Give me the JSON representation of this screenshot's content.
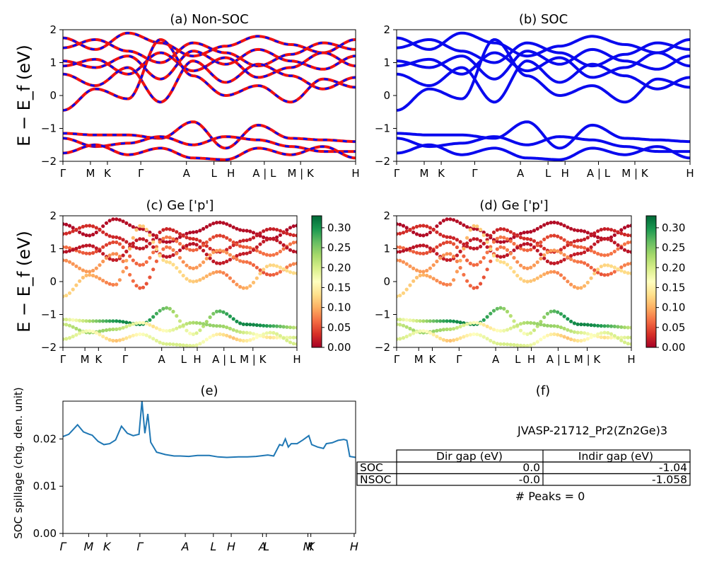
{
  "figure_title": "",
  "ylabel_bands": "E − E_f (eV)",
  "colorbar_ticks": [
    "0.00",
    "0.05",
    "0.10",
    "0.15",
    "0.20",
    "0.25",
    "0.30"
  ],
  "colors": {
    "nonsoc": "#ee1111",
    "soc": "#0a0aee",
    "spillage": "#1f77b4",
    "cmap": [
      "#a50026",
      "#d73027",
      "#f46d43",
      "#fdae61",
      "#fee08b",
      "#ffffbf",
      "#d9ef8b",
      "#a6d96a",
      "#66bd63",
      "#1a9850",
      "#006837"
    ]
  },
  "chart_data": [
    {
      "id": "a",
      "type": "line",
      "title": "(a) Non-SOC",
      "ylim": [
        -2,
        2
      ],
      "yticks": [
        "2",
        "1",
        "0",
        "−1",
        "−2"
      ],
      "kpoints": [
        "Γ",
        "M",
        "K",
        "Γ",
        "A",
        "L",
        "H",
        "A | L",
        "M | K",
        "H"
      ],
      "kpoint_positions": [
        0,
        0.094,
        0.152,
        0.266,
        0.422,
        0.516,
        0.574,
        0.688,
        0.812,
        1.0
      ],
      "series": [
        {
          "values": [
            1.75,
            1.4,
            1.9,
            1.6,
            1.2,
            1.5,
            1.8,
            1.55,
            1.3,
            1.7
          ]
        },
        {
          "values": [
            1.45,
            1.7,
            1.35,
            1.0,
            1.6,
            1.3,
            0.9,
            1.25,
            1.6,
            1.4
          ]
        },
        {
          "values": [
            1.05,
            0.85,
            1.2,
            0.5,
            1.35,
            0.95,
            1.4,
            1.05,
            0.8,
            1.2
          ]
        },
        {
          "values": [
            0.9,
            1.1,
            0.65,
            1.3,
            0.75,
            1.15,
            0.55,
            0.85,
            1.3,
            0.9
          ]
        },
        {
          "values": [
            0.65,
            0.3,
            0.85,
            -0.2,
            1.05,
            0.4,
            0.95,
            0.6,
            0.2,
            0.55
          ]
        },
        {
          "values": [
            -0.45,
            0.2,
            -0.1,
            1.7,
            0.6,
            0.0,
            0.3,
            -0.2,
            0.5,
            0.25
          ]
        },
        {
          "values": [
            -1.15,
            -1.2,
            -1.2,
            -1.3,
            -0.8,
            -1.6,
            -0.9,
            -1.3,
            -1.35,
            -1.4
          ]
        },
        {
          "values": [
            -1.3,
            -1.55,
            -1.45,
            -1.25,
            -1.5,
            -1.25,
            -1.35,
            -1.55,
            -1.7,
            -1.7
          ]
        },
        {
          "values": [
            -1.75,
            -1.5,
            -1.8,
            -1.6,
            -1.9,
            -1.95,
            -1.6,
            -1.8,
            -1.55,
            -1.9
          ]
        }
      ]
    },
    {
      "id": "b",
      "type": "line",
      "title": "(b) SOC",
      "ylim": [
        -2,
        2
      ],
      "yticks": [
        "2",
        "1",
        "0",
        "−1",
        "−2"
      ],
      "kpoints": [
        "Γ",
        "M",
        "K",
        "Γ",
        "A",
        "L",
        "H",
        "A | L",
        "M | K",
        "H"
      ],
      "kpoint_positions": [
        0,
        0.094,
        0.152,
        0.266,
        0.422,
        0.516,
        0.574,
        0.688,
        0.812,
        1.0
      ],
      "series": [
        {
          "values": [
            1.75,
            1.4,
            1.9,
            1.6,
            1.2,
            1.5,
            1.8,
            1.55,
            1.3,
            1.7
          ]
        },
        {
          "values": [
            1.45,
            1.7,
            1.35,
            1.0,
            1.6,
            1.3,
            0.9,
            1.25,
            1.6,
            1.4
          ]
        },
        {
          "values": [
            1.05,
            0.85,
            1.2,
            0.5,
            1.35,
            0.95,
            1.4,
            1.05,
            0.8,
            1.2
          ]
        },
        {
          "values": [
            0.9,
            1.1,
            0.65,
            1.3,
            0.75,
            1.15,
            0.55,
            0.85,
            1.3,
            0.9
          ]
        },
        {
          "values": [
            0.65,
            0.3,
            0.85,
            -0.2,
            1.05,
            0.4,
            0.95,
            0.6,
            0.2,
            0.55
          ]
        },
        {
          "values": [
            -0.45,
            0.2,
            -0.1,
            1.7,
            0.6,
            0.0,
            0.3,
            -0.2,
            0.5,
            0.25
          ]
        },
        {
          "values": [
            -1.15,
            -1.2,
            -1.2,
            -1.3,
            -0.8,
            -1.6,
            -0.9,
            -1.3,
            -1.35,
            -1.4
          ]
        },
        {
          "values": [
            -1.3,
            -1.55,
            -1.45,
            -1.25,
            -1.5,
            -1.25,
            -1.35,
            -1.55,
            -1.7,
            -1.7
          ]
        },
        {
          "values": [
            -1.75,
            -1.5,
            -1.8,
            -1.6,
            -1.9,
            -1.95,
            -1.6,
            -1.8,
            -1.55,
            -1.9
          ]
        }
      ]
    },
    {
      "id": "c",
      "type": "scatter",
      "title": "(c)  Ge ['p']",
      "ylim": [
        -2,
        2
      ],
      "yticks": [
        "2",
        "1",
        "0",
        "−1",
        "−2"
      ],
      "colorbar_range": [
        0.0,
        0.33
      ],
      "kpoints": [
        "Γ",
        "M",
        "K",
        "Γ",
        "A",
        "L",
        "H",
        "A | L",
        "M | K",
        "H"
      ],
      "kpoint_positions": [
        0,
        0.094,
        0.152,
        0.266,
        0.422,
        0.516,
        0.574,
        0.688,
        0.812,
        1.0
      ],
      "bands": [
        {
          "values": [
            1.75,
            1.4,
            1.9,
            1.6,
            1.2,
            1.5,
            1.8,
            1.55,
            1.3,
            1.7
          ],
          "weight": 0.01
        },
        {
          "values": [
            1.45,
            1.7,
            1.35,
            1.0,
            1.6,
            1.3,
            0.9,
            1.25,
            1.6,
            1.4
          ],
          "weight": 0.03
        },
        {
          "values": [
            1.05,
            0.85,
            1.2,
            0.5,
            1.35,
            0.95,
            1.4,
            1.05,
            0.8,
            1.2
          ],
          "weight": 0.07
        },
        {
          "values": [
            0.9,
            1.1,
            0.65,
            1.3,
            0.75,
            1.15,
            0.55,
            0.85,
            1.3,
            0.9
          ],
          "weight": 0.02
        },
        {
          "values": [
            0.65,
            0.3,
            0.85,
            -0.2,
            1.05,
            0.4,
            0.95,
            0.6,
            0.2,
            0.55
          ],
          "weight": 0.09
        },
        {
          "values": [
            -0.45,
            0.2,
            -0.1,
            1.7,
            0.6,
            0.0,
            0.3,
            -0.2,
            0.5,
            0.25
          ],
          "weight": 0.13
        },
        {
          "values": [
            -1.15,
            -1.2,
            -1.2,
            -1.3,
            -0.8,
            -1.6,
            -0.9,
            -1.3,
            -1.35,
            -1.4
          ],
          "weight": 0.31
        },
        {
          "values": [
            -1.3,
            -1.55,
            -1.45,
            -1.25,
            -1.5,
            -1.25,
            -1.35,
            -1.55,
            -1.7,
            -1.7
          ],
          "weight": 0.24
        },
        {
          "values": [
            -1.75,
            -1.5,
            -1.8,
            -1.6,
            -1.9,
            -1.95,
            -1.6,
            -1.8,
            -1.55,
            -1.9
          ],
          "weight": 0.2
        }
      ]
    },
    {
      "id": "d",
      "type": "scatter",
      "title": "(d) Ge ['p']",
      "ylim": [
        -2,
        2
      ],
      "yticks": [
        "2",
        "1",
        "0",
        "−1",
        "−2"
      ],
      "colorbar_range": [
        0.0,
        0.33
      ],
      "kpoints": [
        "Γ",
        "M",
        "K",
        "Γ",
        "A",
        "L",
        "H",
        "A | L",
        "M | K",
        "H"
      ],
      "kpoint_positions": [
        0,
        0.094,
        0.152,
        0.266,
        0.422,
        0.516,
        0.574,
        0.688,
        0.812,
        1.0
      ],
      "bands": [
        {
          "values": [
            1.75,
            1.4,
            1.9,
            1.6,
            1.2,
            1.5,
            1.8,
            1.55,
            1.3,
            1.7
          ],
          "weight": 0.01
        },
        {
          "values": [
            1.45,
            1.7,
            1.35,
            1.0,
            1.6,
            1.3,
            0.9,
            1.25,
            1.6,
            1.4
          ],
          "weight": 0.03
        },
        {
          "values": [
            1.05,
            0.85,
            1.2,
            0.5,
            1.35,
            0.95,
            1.4,
            1.05,
            0.8,
            1.2
          ],
          "weight": 0.07
        },
        {
          "values": [
            0.9,
            1.1,
            0.65,
            1.3,
            0.75,
            1.15,
            0.55,
            0.85,
            1.3,
            0.9
          ],
          "weight": 0.02
        },
        {
          "values": [
            0.65,
            0.3,
            0.85,
            -0.2,
            1.05,
            0.4,
            0.95,
            0.6,
            0.2,
            0.55
          ],
          "weight": 0.09
        },
        {
          "values": [
            -0.45,
            0.2,
            -0.1,
            1.7,
            0.6,
            0.0,
            0.3,
            -0.2,
            0.5,
            0.25
          ],
          "weight": 0.13
        },
        {
          "values": [
            -1.15,
            -1.2,
            -1.2,
            -1.3,
            -0.8,
            -1.6,
            -0.9,
            -1.3,
            -1.35,
            -1.4
          ],
          "weight": 0.31
        },
        {
          "values": [
            -1.3,
            -1.55,
            -1.45,
            -1.25,
            -1.5,
            -1.25,
            -1.35,
            -1.55,
            -1.7,
            -1.7
          ],
          "weight": 0.24
        },
        {
          "values": [
            -1.75,
            -1.5,
            -1.8,
            -1.6,
            -1.9,
            -1.95,
            -1.6,
            -1.8,
            -1.55,
            -1.9
          ],
          "weight": 0.2
        }
      ]
    },
    {
      "id": "e",
      "type": "line",
      "title": "(e)",
      "ylabel": "SOC spillage (chg. den. unit)",
      "ylim": [
        0.0,
        0.028
      ],
      "yticks": [
        "0.00",
        "0.01",
        "0.02"
      ],
      "ytick_values": [
        0.0,
        0.01,
        0.02
      ],
      "kpoints": [
        "Γ",
        "M",
        "K",
        "Γ",
        "A",
        "L",
        "H",
        "A",
        "L",
        "M",
        "K",
        "H"
      ],
      "kpoint_positions": [
        0,
        0.088,
        0.15,
        0.263,
        0.418,
        0.514,
        0.575,
        0.682,
        0.695,
        0.837,
        0.847,
        0.995
      ],
      "x": [
        0,
        0.02,
        0.05,
        0.07,
        0.09,
        0.1,
        0.12,
        0.14,
        0.16,
        0.18,
        0.2,
        0.22,
        0.24,
        0.26,
        0.27,
        0.28,
        0.29,
        0.3,
        0.32,
        0.35,
        0.38,
        0.4,
        0.43,
        0.46,
        0.5,
        0.53,
        0.56,
        0.6,
        0.63,
        0.66,
        0.7,
        0.72,
        0.74,
        0.75,
        0.76,
        0.77,
        0.78,
        0.8,
        0.82,
        0.84,
        0.85,
        0.87,
        0.89,
        0.9,
        0.92,
        0.94,
        0.96,
        0.97,
        0.98,
        1.0
      ],
      "values": [
        0.0205,
        0.021,
        0.023,
        0.0215,
        0.021,
        0.0208,
        0.0195,
        0.0188,
        0.019,
        0.0198,
        0.0227,
        0.0212,
        0.0207,
        0.021,
        0.028,
        0.0212,
        0.0253,
        0.0193,
        0.0172,
        0.0167,
        0.0164,
        0.0164,
        0.0163,
        0.0165,
        0.0165,
        0.0162,
        0.0161,
        0.0162,
        0.0162,
        0.0163,
        0.0166,
        0.0164,
        0.0188,
        0.0186,
        0.02,
        0.0183,
        0.019,
        0.019,
        0.0198,
        0.0207,
        0.0188,
        0.0183,
        0.018,
        0.019,
        0.0192,
        0.0197,
        0.0199,
        0.0197,
        0.0163,
        0.0161
      ]
    },
    {
      "id": "f",
      "type": "table",
      "title": "(f)",
      "material": "JVASP-21712_Pr2(Zn2Ge)3",
      "columns": [
        "",
        "Dir gap (eV)",
        "Indir gap (eV)"
      ],
      "rows": [
        [
          "SOC",
          "0.0",
          "-1.04"
        ],
        [
          "NSOC",
          "-0.0",
          "-1.058"
        ]
      ],
      "peaks": "# Peaks = 0"
    }
  ]
}
